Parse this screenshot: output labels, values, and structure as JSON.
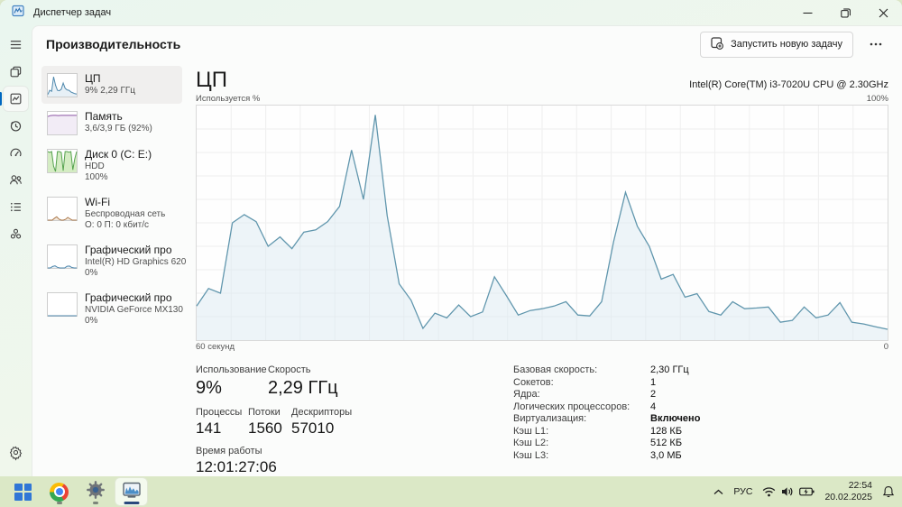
{
  "window": {
    "title": "Диспетчер задач"
  },
  "nav_rail": {
    "items": [
      "menu",
      "processes",
      "performance",
      "app-history",
      "startup-apps",
      "users",
      "details",
      "services"
    ],
    "bottom": "settings"
  },
  "header": {
    "title": "Производительность",
    "new_task_label": "Запустить новую задачу"
  },
  "sidebar": {
    "items": [
      {
        "label": "ЦП",
        "line1": "9% 2,29 ГГц",
        "line2": "",
        "spark": {
          "values": [
            10,
            30,
            25,
            95,
            55,
            30,
            28,
            35,
            65,
            40,
            32,
            30,
            22,
            18,
            14,
            12
          ],
          "line": "#4f88ad",
          "fill": "#e7f0f6"
        }
      },
      {
        "label": "Память",
        "line1": "3,6/3,9 ГБ (92%)",
        "line2": "",
        "spark": {
          "values": [
            86,
            91,
            92,
            92,
            91,
            92,
            92,
            92,
            92,
            92,
            92,
            92
          ],
          "line": "#8b53a3",
          "fill": "#f2ecf6"
        }
      },
      {
        "label": "Диск 0 (C: E:)",
        "line1": "HDD",
        "line2": "100%",
        "spark": {
          "values": [
            100,
            96,
            100,
            30,
            4,
            100,
            100,
            96,
            8,
            100,
            100,
            97,
            100,
            12,
            65,
            100
          ],
          "line": "#55a24e",
          "fill": "#d4ecc3"
        }
      },
      {
        "label": "Wi-Fi",
        "line1": "Беспроводная сеть",
        "line2": "О: 0 П: 0 кбит/с",
        "spark": {
          "values": [
            0,
            0,
            0,
            9,
            16,
            5,
            0,
            0,
            4,
            13,
            6,
            0,
            0,
            0
          ],
          "line": "#ad7a4d",
          "fill": "#f2e8dc"
        }
      },
      {
        "label": "Графический про",
        "line1": "Intel(R) HD Graphics 620",
        "line2": "0%",
        "spark": {
          "values": [
            0,
            0,
            7,
            10,
            3,
            0,
            0,
            0,
            8,
            9,
            2,
            0,
            0
          ],
          "line": "#4f88ad",
          "fill": "#e7f0f6"
        }
      },
      {
        "label": "Графический про",
        "line1": "NVIDIA GeForce MX130",
        "line2": "0%",
        "spark": {
          "values": [
            0,
            0,
            0,
            0,
            0,
            0,
            0,
            0,
            0,
            0,
            0,
            0
          ],
          "line": "#4f88ad",
          "fill": "#e7f0f6"
        }
      }
    ]
  },
  "main": {
    "title": "ЦП",
    "cpu_name": "Intel(R) Core(TM) i3-7020U CPU @ 2.30GHz",
    "chart_top_label": "Используется %",
    "chart_max_label": "100%",
    "chart_time_label": "60 секунд",
    "chart_min_label": "0",
    "stats": {
      "usage_label": "Использование",
      "usage_value": "9%",
      "speed_label": "Скорость",
      "speed_value": "2,29 ГГц",
      "processes_label": "Процессы",
      "processes_value": "141",
      "threads_label": "Потоки",
      "threads_value": "1560",
      "handles_label": "Дескрипторы",
      "handles_value": "57010",
      "uptime_label": "Время работы",
      "uptime_value": "12:01:27:06"
    },
    "details": [
      {
        "label": "Базовая скорость:",
        "value": "2,30 ГГц"
      },
      {
        "label": "Сокетов:",
        "value": "1"
      },
      {
        "label": "Ядра:",
        "value": "2"
      },
      {
        "label": "Логических процессоров:",
        "value": "4"
      },
      {
        "label": "Виртуализация:",
        "value": "Включено"
      },
      {
        "label": "Кэш L1:",
        "value": "128 КБ"
      },
      {
        "label": "Кэш L2:",
        "value": "512 КБ"
      },
      {
        "label": "Кэш L3:",
        "value": "3,0 МБ"
      }
    ]
  },
  "chart_data": {
    "type": "area",
    "title": "ЦП — Используется %",
    "x_span_seconds": 60,
    "ylim": [
      0,
      100
    ],
    "grid": {
      "v_divisions": 20,
      "h_divisions": 10
    },
    "line_color": "#6096ad",
    "fill_color": "#dcE9f2",
    "values": [
      14.5,
      22,
      20,
      50,
      53.5,
      50.5,
      40,
      44,
      39,
      46,
      47,
      50.5,
      57,
      81,
      60,
      96,
      53,
      24,
      17,
      5,
      11.5,
      9.5,
      15,
      10,
      12,
      27,
      19,
      10.7,
      12.6,
      13.4,
      14.5,
      16.4,
      10.7,
      10.3,
      16.4,
      42,
      63,
      48.5,
      40,
      26,
      28,
      18.3,
      19.8,
      12.2,
      10.7,
      16.4,
      13.4,
      13.7,
      14.1,
      7.6,
      8.4,
      14.1,
      9.5,
      10.7,
      16,
      7.6,
      6.9,
      5.7,
      4.6
    ]
  },
  "taskbar": {
    "language": "РУС",
    "time": "22:54",
    "date": "20.02.2025"
  }
}
